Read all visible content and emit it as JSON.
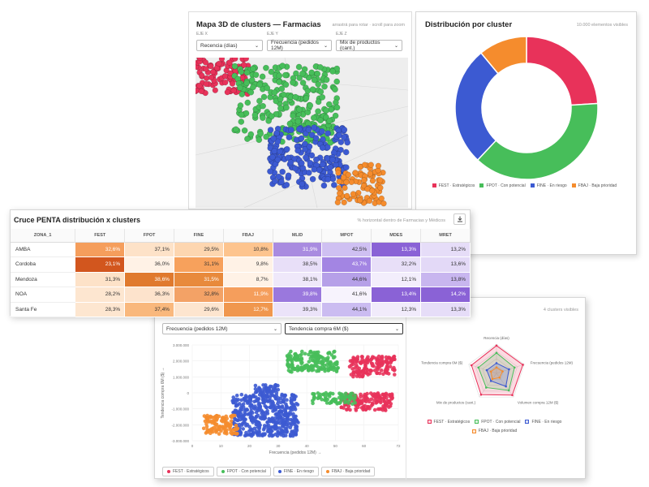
{
  "colors": {
    "fest": "#e8325a",
    "fpot": "#47be5a",
    "fine": "#3c5ad2",
    "fbaj": "#f58c2d"
  },
  "clusters": [
    {
      "key": "fest",
      "label": "FEST · Estratégicos",
      "color": "#e8325a"
    },
    {
      "key": "fpot",
      "label": "FPOT · Con potencial",
      "color": "#47be5a"
    },
    {
      "key": "fine",
      "label": "FINE · En riesgo",
      "color": "#3c5ad2"
    },
    {
      "key": "fbaj",
      "label": "FBAJ · Baja prioridad",
      "color": "#f58c2d"
    }
  ],
  "map3d": {
    "title": "Mapa 3D de clusters — Farmacias",
    "hint": "arrastrá para rotar · scroll para zoom",
    "axes": [
      {
        "label": "EJE X",
        "value": "Recencia (días)"
      },
      {
        "label": "EJE Y",
        "value": "Frecuencia (pedidos 12M)"
      },
      {
        "label": "EJE Z",
        "value": "Mix de productos (cant.)"
      }
    ]
  },
  "donut": {
    "title": "Distribución por cluster",
    "hint": "10.000 elementos visibles",
    "chart_data": {
      "type": "pie",
      "categories": [
        "FEST · Estratégicos",
        "FPOT · Con potencial",
        "FINE · En riesgo",
        "FBAJ · Baja prioridad"
      ],
      "values": [
        24,
        38,
        27,
        11
      ]
    }
  },
  "cross": {
    "title": "Cruce PENTA distribución x clusters",
    "hint": "% horizontal dentro de Farmacias y Médicos",
    "download_icon": "download-icon",
    "columns": [
      "ZONA_1",
      "FEST",
      "FPOT",
      "FINE",
      "FBAJ",
      "MLID",
      "MPOT",
      "MDES",
      "MRET"
    ],
    "rows": [
      {
        "zone": "AMBA",
        "cells": [
          "32,6%",
          "37,1%",
          "29,5%",
          "10,8%",
          "31,9%",
          "42,5%",
          "13,3%",
          "13,2%"
        ]
      },
      {
        "zone": "Cordoba",
        "cells": [
          "23,1%",
          "36,0%",
          "31,1%",
          "9,8%",
          "38,5%",
          "43,7%",
          "32,2%",
          "13,6%"
        ]
      },
      {
        "zone": "Mendoza",
        "cells": [
          "31,3%",
          "38,6%",
          "31,5%",
          "8,7%",
          "38,1%",
          "44,6%",
          "12,1%",
          "13,8%"
        ]
      },
      {
        "zone": "NOA",
        "cells": [
          "28,2%",
          "36,3%",
          "32,8%",
          "11,9%",
          "39,8%",
          "41,6%",
          "13,4%",
          "14,2%"
        ]
      },
      {
        "zone": "Santa Fe",
        "cells": [
          "28,3%",
          "37,4%",
          "29,6%",
          "12,7%",
          "39,3%",
          "44,1%",
          "12,3%",
          "13,3%"
        ]
      }
    ],
    "cell_colors": [
      [
        "#f59e5c",
        "#fde2c8",
        "#fdd6b0",
        "#fdc48e",
        "#a98be0",
        "#cfc0f2",
        "#8a62d6",
        "#e6ddf8"
      ],
      [
        "#d2561e",
        "#fff2e6",
        "#f7a15c",
        "#fff2e6",
        "#e8dff8",
        "#a385e3",
        "#e8dff8",
        "#e3d9f7"
      ],
      [
        "#fde2c8",
        "#e07a2e",
        "#e88a3c",
        "#fff2e6",
        "#efe8fa",
        "#b6a0e8",
        "#f3eefc",
        "#c8b6ef"
      ],
      [
        "#fde6d0",
        "#fde3cc",
        "#f3a266",
        "#f59e5c",
        "#9a78dd",
        "#f7f3fd",
        "#8a62d6",
        "#8a62d6"
      ],
      [
        "#fde6d0",
        "#f9b87d",
        "#fde5cf",
        "#f0974e",
        "#ebe3f9",
        "#cbbcf1",
        "#f1ebfb",
        "#e6ddf8"
      ]
    ],
    "light_text": [
      [
        true,
        false,
        false,
        false,
        true,
        false,
        true,
        false
      ],
      [
        true,
        false,
        false,
        false,
        false,
        true,
        false,
        false
      ],
      [
        false,
        true,
        true,
        false,
        false,
        false,
        false,
        false
      ],
      [
        false,
        false,
        false,
        true,
        true,
        false,
        true,
        true
      ],
      [
        false,
        false,
        false,
        true,
        false,
        false,
        false,
        false
      ]
    ]
  },
  "scatter": {
    "x_axis_select": "Frecuencia (pedidos 12M)",
    "y_axis_select": "Tendencia compra 6M ($)",
    "chart_data": {
      "type": "scatter",
      "xlabel": "Frecuencia (pedidos 12M) →",
      "ylabel": "Tendencia compra 6M ($) →",
      "xlim": [
        0,
        72
      ],
      "ylim": [
        -3000000,
        3000000
      ],
      "x_ticks": [
        "0",
        "10",
        "20",
        "30",
        "40",
        "50",
        "60",
        "72"
      ],
      "y_ticks": [
        "3.000.000",
        "2.000.000",
        "1.000.000",
        "0",
        "-1.000.000",
        "-2.000.000",
        "-3.000.000"
      ],
      "series": [
        {
          "name": "FEST · Estratégicos",
          "regions": [
            [
              55,
              71,
              1000000,
              2300000
            ],
            [
              52,
              70,
              -1100000,
              0
            ]
          ]
        },
        {
          "name": "FPOT · Con potencial",
          "regions": [
            [
              33,
              51,
              1300000,
              2600000
            ],
            [
              42,
              57,
              -700000,
              0
            ]
          ]
        },
        {
          "name": "FINE · En riesgo",
          "regions": [
            [
              14,
              37,
              -2700000,
              -100000
            ],
            [
              22,
              30,
              -300000,
              500000
            ]
          ]
        },
        {
          "name": "FBAJ · Baja prioridad",
          "regions": [
            [
              4,
              16,
              -2600000,
              -1400000
            ]
          ]
        }
      ]
    }
  },
  "radar": {
    "hint": "4 clusters visibles",
    "chart_data": {
      "type": "radar",
      "axes": [
        "Recencia (días)",
        "Frecuencia (pedidos 12M)",
        "Volumen compra 12M ($)",
        "Mix de productos (cant.)",
        "Tendencia compra 6M ($)"
      ],
      "series": [
        {
          "name": "FEST · Estratégicos",
          "values": [
            0.95,
            0.95,
            0.92,
            0.9,
            0.9
          ]
        },
        {
          "name": "FPOT · Con potencial",
          "values": [
            0.7,
            0.65,
            0.72,
            0.6,
            0.65
          ]
        },
        {
          "name": "FINE · En riesgo",
          "values": [
            0.35,
            0.45,
            0.55,
            0.32,
            0.35
          ]
        },
        {
          "name": "FBAJ · Baja prioridad",
          "values": [
            0.2,
            0.22,
            0.18,
            0.24,
            0.2
          ]
        }
      ]
    }
  }
}
